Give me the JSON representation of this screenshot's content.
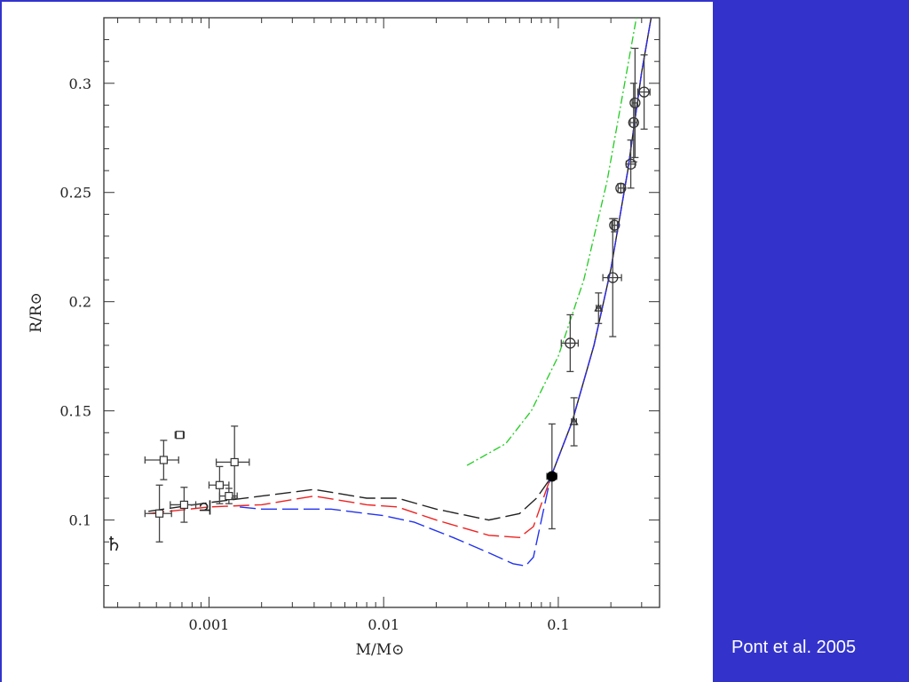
{
  "credit": "Pont et al. 2005",
  "colors": {
    "background": "#3333cc",
    "panel": "#ffffff",
    "black_curve": "#222222",
    "red_curve": "#ee2222",
    "blue_curve": "#2233ee",
    "green_curve": "#22cc22",
    "data_points": "#444444"
  },
  "chart_data": {
    "type": "scatter",
    "title": "",
    "xlabel": "M/M⊙",
    "ylabel": "R/R⊙",
    "xscale": "log",
    "xlim": [
      0.00025,
      0.38
    ],
    "ylim": [
      0.06,
      0.33
    ],
    "grid": false,
    "x_ticks": [
      0.001,
      0.01,
      0.1
    ],
    "x_tick_labels": [
      "0.001",
      "0.01",
      "0.1"
    ],
    "y_ticks": [
      0.1,
      0.15,
      0.2,
      0.25,
      0.3
    ],
    "y_tick_labels": [
      "0.1",
      "0.15",
      "0.2",
      "0.25",
      "0.3"
    ],
    "annotations": [
      {
        "text": "♄",
        "x": 0.000285,
        "y": 0.086
      },
      {
        "text": "♃",
        "x": 0.00095,
        "y": 0.1025
      }
    ],
    "series": [
      {
        "marker": "square",
        "points": [
          {
            "x": 0.00055,
            "y": 0.1275,
            "xerr": 0.00012,
            "yerr": 0.009
          },
          {
            "x": 0.00068,
            "y": 0.139,
            "xerr": 4e-05,
            "yerr": 0.0015
          },
          {
            "x": 0.00072,
            "y": 0.107,
            "xerr": 0.00012,
            "yerr": 0.008
          },
          {
            "x": 0.00052,
            "y": 0.103,
            "xerr": 9e-05,
            "yerr": 0.013
          },
          {
            "x": 0.00115,
            "y": 0.116,
            "xerr": 0.00015,
            "yerr": 0.0085
          },
          {
            "x": 0.0013,
            "y": 0.111,
            "xerr": 0.00015,
            "yerr": 0.0035
          },
          {
            "x": 0.0014,
            "y": 0.1265,
            "xerr": 0.0003,
            "yerr": 0.0165
          }
        ]
      },
      {
        "marker": "circle",
        "points": [
          {
            "x": 0.117,
            "y": 0.181,
            "xerr": 0.013,
            "yerr": 0.013
          },
          {
            "x": 0.205,
            "y": 0.211,
            "xerr": 0.025,
            "yerr": 0.027
          },
          {
            "x": 0.21,
            "y": 0.235,
            "xerr": 0.008,
            "yerr": 0.003
          },
          {
            "x": 0.228,
            "y": 0.252,
            "xerr": 0.008,
            "yerr": 0.002
          },
          {
            "x": 0.26,
            "y": 0.263,
            "xerr": 0.015,
            "yerr": 0.011
          },
          {
            "x": 0.27,
            "y": 0.282,
            "xerr": 0.012,
            "yerr": 0.018
          },
          {
            "x": 0.275,
            "y": 0.291,
            "xerr": 0.01,
            "yerr": 0.025
          },
          {
            "x": 0.31,
            "y": 0.296,
            "xerr": 0.025,
            "yerr": 0.017
          }
        ]
      },
      {
        "marker": "triangle",
        "points": [
          {
            "x": 0.123,
            "y": 0.145,
            "xerr": 0.004,
            "yerr": 0.011
          },
          {
            "x": 0.17,
            "y": 0.197,
            "xerr": 0.005,
            "yerr": 0.007
          }
        ]
      },
      {
        "marker": "filled-circle",
        "points": [
          {
            "x": 0.092,
            "y": 0.12,
            "xerr": 0.006,
            "yerr": 0.024
          }
        ]
      }
    ],
    "curves": [
      {
        "color": "black",
        "style": "long-dash-to-solid",
        "points": [
          [
            0.00045,
            0.104
          ],
          [
            0.001,
            0.108
          ],
          [
            0.002,
            0.111
          ],
          [
            0.004,
            0.114
          ],
          [
            0.008,
            0.11
          ],
          [
            0.012,
            0.11
          ],
          [
            0.02,
            0.105
          ],
          [
            0.04,
            0.1
          ],
          [
            0.06,
            0.103
          ],
          [
            0.075,
            0.11
          ],
          [
            0.09,
            0.119
          ],
          [
            0.12,
            0.145
          ],
          [
            0.16,
            0.18
          ],
          [
            0.2,
            0.215
          ],
          [
            0.25,
            0.26
          ],
          [
            0.3,
            0.305
          ],
          [
            0.34,
            0.33
          ]
        ]
      },
      {
        "color": "red",
        "style": "long-dash-to-solid",
        "points": [
          [
            0.00045,
            0.103
          ],
          [
            0.001,
            0.106
          ],
          [
            0.002,
            0.107
          ],
          [
            0.004,
            0.111
          ],
          [
            0.008,
            0.107
          ],
          [
            0.012,
            0.106
          ],
          [
            0.02,
            0.1
          ],
          [
            0.04,
            0.093
          ],
          [
            0.06,
            0.092
          ],
          [
            0.072,
            0.097
          ],
          [
            0.09,
            0.119
          ],
          [
            0.12,
            0.145
          ],
          [
            0.16,
            0.18
          ],
          [
            0.2,
            0.215
          ],
          [
            0.25,
            0.26
          ],
          [
            0.3,
            0.305
          ],
          [
            0.34,
            0.33
          ]
        ]
      },
      {
        "color": "blue",
        "style": "long-dash-to-solid",
        "points": [
          [
            0.0015,
            0.106
          ],
          [
            0.002,
            0.105
          ],
          [
            0.005,
            0.105
          ],
          [
            0.01,
            0.102
          ],
          [
            0.015,
            0.099
          ],
          [
            0.025,
            0.092
          ],
          [
            0.04,
            0.085
          ],
          [
            0.055,
            0.08
          ],
          [
            0.065,
            0.079
          ],
          [
            0.072,
            0.083
          ],
          [
            0.08,
            0.1
          ],
          [
            0.09,
            0.119
          ],
          [
            0.12,
            0.145
          ],
          [
            0.16,
            0.18
          ],
          [
            0.2,
            0.215
          ],
          [
            0.25,
            0.26
          ],
          [
            0.3,
            0.305
          ],
          [
            0.34,
            0.33
          ]
        ]
      },
      {
        "color": "green",
        "style": "dash-dot",
        "points": [
          [
            0.03,
            0.125
          ],
          [
            0.05,
            0.135
          ],
          [
            0.07,
            0.15
          ],
          [
            0.1,
            0.175
          ],
          [
            0.14,
            0.21
          ],
          [
            0.19,
            0.255
          ],
          [
            0.24,
            0.3
          ],
          [
            0.28,
            0.33
          ]
        ]
      }
    ]
  }
}
